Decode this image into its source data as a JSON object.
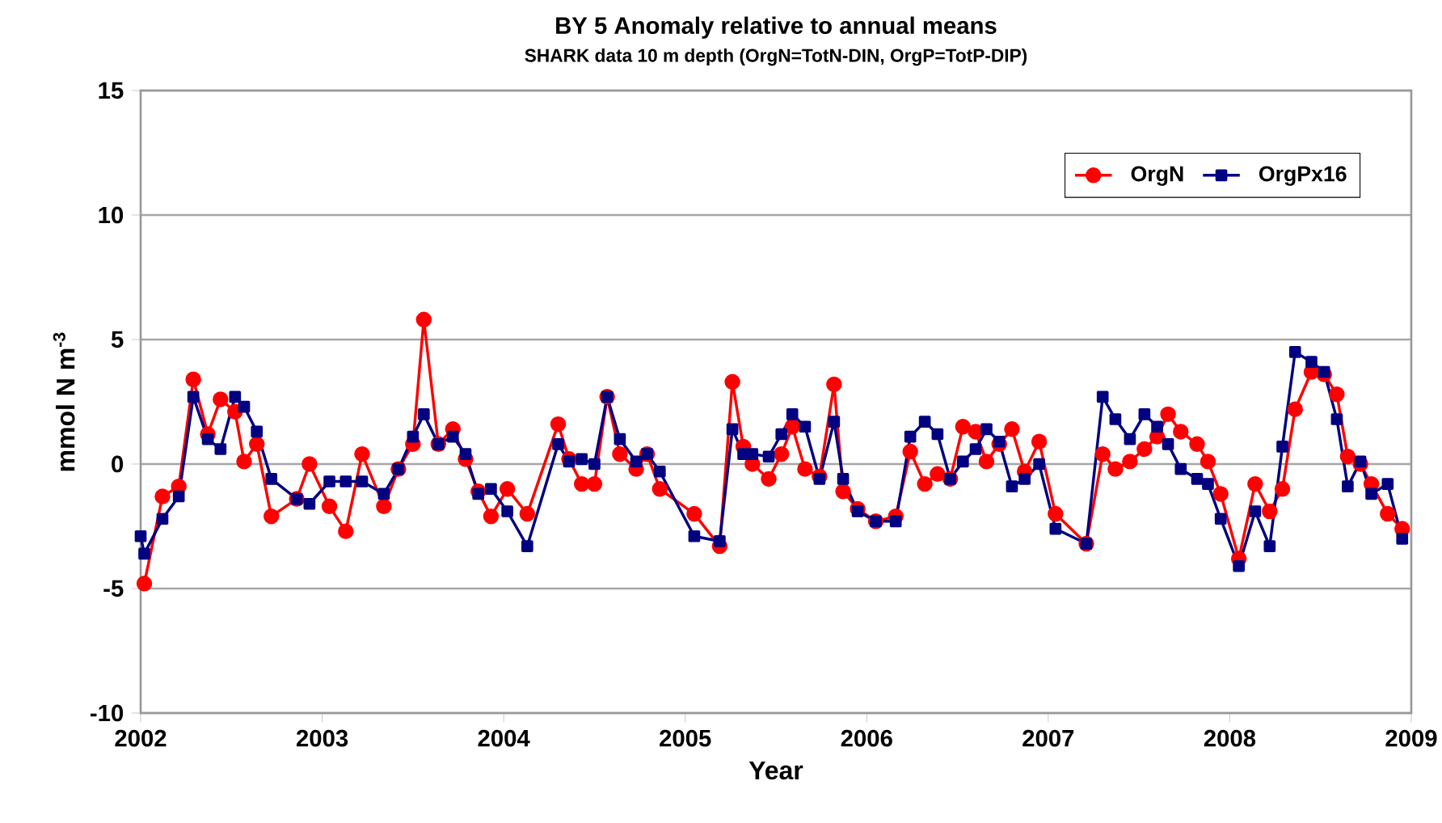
{
  "chart_data": {
    "type": "line",
    "title": "BY 5 Anomaly relative to annual means",
    "subtitle": "SHARK  data 10 m depth (OrgN=TotN-DIN, OrgP=TotP-DIP)",
    "xlabel": "Year",
    "ylabel": "mmol N m$^{-3}$",
    "x": [
      2002.0,
      2002.02,
      2002.12,
      2002.21,
      2002.29,
      2002.37,
      2002.44,
      2002.52,
      2002.57,
      2002.64,
      2002.72,
      2002.86,
      2002.93,
      2003.04,
      2003.13,
      2003.22,
      2003.34,
      2003.42,
      2003.5,
      2003.56,
      2003.64,
      2003.72,
      2003.79,
      2003.86,
      2003.93,
      2004.02,
      2004.13,
      2004.3,
      2004.36,
      2004.43,
      2004.5,
      2004.57,
      2004.64,
      2004.73,
      2004.79,
      2004.86,
      2005.05,
      2005.19,
      2005.26,
      2005.32,
      2005.37,
      2005.46,
      2005.53,
      2005.59,
      2005.66,
      2005.74,
      2005.82,
      2005.87,
      2005.95,
      2006.05,
      2006.16,
      2006.24,
      2006.32,
      2006.39,
      2006.46,
      2006.53,
      2006.6,
      2006.66,
      2006.73,
      2006.8,
      2006.87,
      2006.95,
      2007.04,
      2007.21,
      2007.3,
      2007.37,
      2007.45,
      2007.53,
      2007.6,
      2007.66,
      2007.73,
      2007.82,
      2007.88,
      2007.95,
      2008.05,
      2008.14,
      2008.22,
      2008.29,
      2008.36,
      2008.45,
      2008.52,
      2008.59,
      2008.65,
      2008.72,
      2008.78,
      2008.87,
      2008.95
    ],
    "series": [
      {
        "name": "OrgN",
        "color": "#ff0000",
        "marker": "circle",
        "values": [
          null,
          -4.8,
          -1.3,
          -0.9,
          3.4,
          1.2,
          2.6,
          2.1,
          0.1,
          0.8,
          -2.1,
          -1.4,
          0.0,
          -1.7,
          -2.7,
          0.4,
          -1.7,
          -0.2,
          0.8,
          5.8,
          0.8,
          1.4,
          0.2,
          -1.1,
          -2.1,
          -1.0,
          -2.0,
          1.6,
          0.2,
          -0.8,
          -0.8,
          2.7,
          0.4,
          -0.2,
          0.4,
          -1.0,
          -2.0,
          -3.3,
          3.3,
          0.7,
          0.0,
          -0.6,
          0.4,
          1.5,
          -0.2,
          -0.5,
          3.2,
          -1.1,
          -1.8,
          -2.3,
          -2.1,
          0.5,
          -0.8,
          -0.4,
          -0.6,
          1.5,
          1.3,
          0.1,
          0.8,
          1.4,
          -0.3,
          0.9,
          -2.0,
          -3.2,
          0.4,
          -0.2,
          0.1,
          0.6,
          1.1,
          2.0,
          1.3,
          0.8,
          0.1,
          -1.2,
          -3.8,
          -0.8,
          -1.9,
          -1.0,
          2.2,
          3.7,
          3.6,
          2.8,
          0.3,
          0.0,
          -0.8,
          -2.0,
          -2.6
        ]
      },
      {
        "name": "OrgPx16",
        "color": "#000080",
        "marker": "square",
        "values": [
          -2.9,
          -3.6,
          -2.2,
          -1.3,
          2.7,
          1.0,
          0.6,
          2.7,
          2.3,
          1.3,
          -0.6,
          -1.4,
          -1.6,
          -0.7,
          -0.7,
          -0.7,
          -1.2,
          -0.2,
          1.1,
          2.0,
          0.8,
          1.1,
          0.4,
          -1.2,
          -1.0,
          -1.9,
          -3.3,
          0.8,
          0.1,
          0.2,
          0.0,
          2.7,
          1.0,
          0.1,
          0.4,
          -0.3,
          -2.9,
          -3.1,
          1.4,
          0.4,
          0.4,
          0.3,
          1.2,
          2.0,
          1.5,
          -0.6,
          1.7,
          -0.6,
          -1.9,
          -2.3,
          -2.3,
          1.1,
          1.7,
          1.2,
          -0.6,
          0.1,
          0.6,
          1.4,
          0.9,
          -0.9,
          -0.6,
          0.0,
          -2.6,
          -3.2,
          2.7,
          1.8,
          1.0,
          2.0,
          1.5,
          0.8,
          -0.2,
          -0.6,
          -0.8,
          -2.2,
          -4.1,
          -1.9,
          -3.3,
          0.7,
          4.5,
          4.1,
          3.7,
          1.8,
          -0.9,
          0.1,
          -1.2,
          -0.8,
          -3.0
        ]
      }
    ],
    "xlim": [
      2002,
      2009
    ],
    "xticks": [
      2002,
      2003,
      2004,
      2005,
      2006,
      2007,
      2008,
      2009
    ],
    "ylim": [
      -10,
      15
    ],
    "yticks": [
      -10,
      -5,
      0,
      5,
      10,
      15
    ],
    "grid": "y",
    "legend": "top right",
    "line_style": "solid"
  }
}
